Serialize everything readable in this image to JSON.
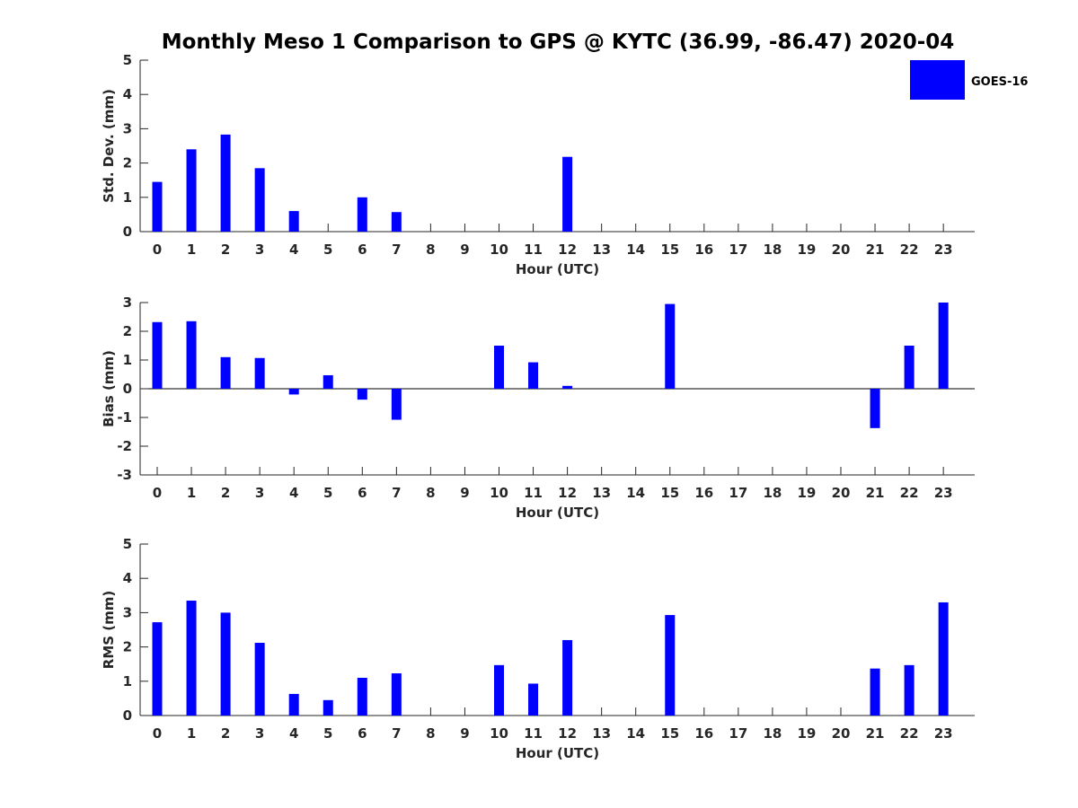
{
  "chart_data": {
    "title": "Monthly Meso 1 Comparison to GPS @ KYTC (36.99, -86.47) 2020-04",
    "legend": {
      "label": "GOES-16",
      "color": "#0000ff",
      "placement": "top-right"
    },
    "hours": [
      "0",
      "1",
      "2",
      "3",
      "4",
      "5",
      "6",
      "7",
      "8",
      "9",
      "10",
      "11",
      "12",
      "13",
      "14",
      "15",
      "16",
      "17",
      "18",
      "19",
      "20",
      "21",
      "22",
      "23"
    ],
    "panels": [
      {
        "type": "bar",
        "name": "stddev",
        "ylabel": "Std. Dev. (mm)",
        "xlabel": "Hour (UTC)",
        "ylim": [
          0,
          5
        ],
        "yticks": [
          0,
          1,
          2,
          3,
          4,
          5
        ],
        "values": [
          1.45,
          2.4,
          2.83,
          1.85,
          0.6,
          null,
          1.0,
          0.57,
          null,
          null,
          null,
          null,
          2.18,
          null,
          null,
          null,
          null,
          null,
          null,
          null,
          null,
          null,
          null,
          null
        ]
      },
      {
        "type": "bar",
        "name": "bias",
        "ylabel": "Bias (mm)",
        "xlabel": "Hour (UTC)",
        "ylim": [
          -3,
          3
        ],
        "yticks": [
          -3,
          -2,
          -1,
          0,
          1,
          2,
          3
        ],
        "values": [
          2.32,
          2.35,
          1.1,
          1.07,
          -0.2,
          0.47,
          -0.38,
          -1.08,
          null,
          null,
          1.5,
          0.92,
          0.1,
          null,
          null,
          2.95,
          null,
          null,
          null,
          null,
          null,
          -1.37,
          1.5,
          3.0
        ]
      },
      {
        "type": "bar",
        "name": "rms",
        "ylabel": "RMS (mm)",
        "xlabel": "Hour (UTC)",
        "ylim": [
          0,
          5
        ],
        "yticks": [
          0,
          1,
          2,
          3,
          4,
          5
        ],
        "values": [
          2.72,
          3.35,
          3.0,
          2.12,
          0.63,
          0.45,
          1.1,
          1.23,
          null,
          null,
          1.47,
          0.93,
          2.2,
          null,
          null,
          2.93,
          null,
          null,
          null,
          null,
          null,
          1.37,
          1.47,
          3.3
        ]
      }
    ]
  }
}
